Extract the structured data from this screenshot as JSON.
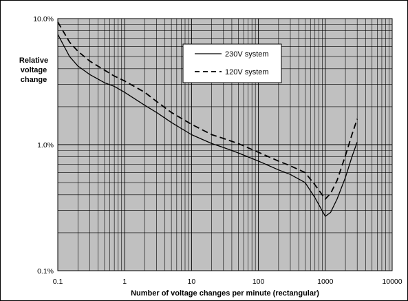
{
  "chart_data": {
    "type": "line",
    "xscale": "log",
    "yscale": "log",
    "xlim": [
      0.1,
      10000
    ],
    "ylim": [
      0.1,
      10.0
    ],
    "xlabel": "Number of voltage changes per minute (rectangular)",
    "ylabel_lines": [
      "Relative",
      "voltage",
      "change"
    ],
    "x_ticks": [
      {
        "value": 0.1,
        "label": "0.1"
      },
      {
        "value": 1,
        "label": "1"
      },
      {
        "value": 10,
        "label": "10"
      },
      {
        "value": 100,
        "label": "100"
      },
      {
        "value": 1000,
        "label": "1000"
      },
      {
        "value": 10000,
        "label": "10000"
      }
    ],
    "y_ticks": [
      {
        "value": 10.0,
        "label": "10.0%"
      },
      {
        "value": 1.0,
        "label": "1.0%"
      },
      {
        "value": 0.1,
        "label": "0.1%"
      }
    ],
    "grid": true,
    "plot_background": "#c0c0c0",
    "legend_position": "top-right",
    "series": [
      {
        "name": "230V system",
        "style": "solid",
        "x": [
          0.1,
          0.15,
          0.2,
          0.3,
          0.5,
          0.7,
          1,
          2,
          3,
          5,
          10,
          20,
          30,
          50,
          100,
          200,
          300,
          500,
          700,
          1000,
          1200,
          1500,
          2000,
          2500,
          3000
        ],
        "y": [
          7.5,
          5.0,
          4.2,
          3.6,
          3.1,
          2.9,
          2.6,
          2.05,
          1.8,
          1.5,
          1.2,
          1.02,
          0.95,
          0.86,
          0.74,
          0.63,
          0.58,
          0.5,
          0.38,
          0.27,
          0.29,
          0.37,
          0.55,
          0.8,
          1.05
        ]
      },
      {
        "name": "120V system",
        "style": "dashed",
        "x": [
          0.1,
          0.15,
          0.2,
          0.3,
          0.5,
          0.7,
          1,
          2,
          3,
          5,
          10,
          20,
          30,
          50,
          100,
          200,
          300,
          500,
          700,
          1000,
          1200,
          1500,
          2000,
          2500,
          3000
        ],
        "y": [
          9.4,
          6.5,
          5.5,
          4.6,
          3.9,
          3.5,
          3.2,
          2.6,
          2.2,
          1.8,
          1.45,
          1.2,
          1.12,
          1.02,
          0.87,
          0.74,
          0.68,
          0.6,
          0.48,
          0.37,
          0.41,
          0.52,
          0.82,
          1.2,
          1.6
        ]
      }
    ]
  }
}
